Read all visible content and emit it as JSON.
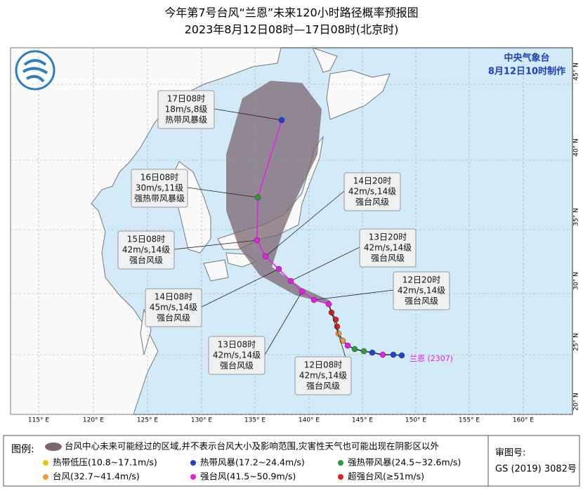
{
  "header": {
    "title": "今年第7号台风“兰恩”未来120小时路径概率预报图",
    "subtitle": "2023年8月12日08时—17日08时(北京时)"
  },
  "agency": {
    "name": "中央气象台",
    "issued": "8月12日10时制作"
  },
  "lon_labels": [
    "115° E",
    "120° E",
    "125° E",
    "130° E",
    "135° E",
    "140° E",
    "145° E",
    "150° E",
    "155° E",
    "160° E"
  ],
  "lat_labels": [
    "45° N",
    "40° N",
    "35° N",
    "30° N",
    "25° N",
    "20° N"
  ],
  "forecast_points": [
    {
      "time": "12日08时",
      "wind": "42m/s,14级",
      "grade": "强台风级"
    },
    {
      "time": "12日20时",
      "wind": "42m/s,14级",
      "grade": "强台风级"
    },
    {
      "time": "13日08时",
      "wind": "42m/s,14级",
      "grade": "强台风级"
    },
    {
      "time": "13日20时",
      "wind": "42m/s,14级",
      "grade": "强台风级"
    },
    {
      "time": "14日08时",
      "wind": "45m/s,14级",
      "grade": "强台风级"
    },
    {
      "time": "14日20时",
      "wind": "42m/s,14级",
      "grade": "强台风级"
    },
    {
      "time": "15日08时",
      "wind": "42m/s,14级",
      "grade": "强台风级"
    },
    {
      "time": "16日08时",
      "wind": "30m/s,11级",
      "grade": "强热带风暴级"
    },
    {
      "time": "17日08时",
      "wind": "18m/s,8级",
      "grade": "热带风暴级"
    }
  ],
  "storm_label": "兰恩 (2307)",
  "legend": {
    "title": "图例:",
    "cone": "台风中心未来可能经过的区域,并不表示台风大小及影响范围,灾害性天气也可能出现在阴影区以外",
    "items": [
      {
        "label": "热带低压(10.8~17.1m/s)",
        "color": "#f2c200"
      },
      {
        "label": "热带风暴(17.2~24.4m/s)",
        "color": "#1f3fd6"
      },
      {
        "label": "强热带风暴(24.5~32.6m/s)",
        "color": "#2e9a3a"
      },
      {
        "label": "台风(32.7~41.4m/s)",
        "color": "#f59a3a"
      },
      {
        "label": "强台风(41.5~50.9m/s)",
        "color": "#e81ee8"
      },
      {
        "label": "超强台风(≥51m/s)",
        "color": "#e02020"
      }
    ]
  },
  "approval": {
    "label": "审图号:",
    "number": "GS (2019) 3082号"
  }
}
